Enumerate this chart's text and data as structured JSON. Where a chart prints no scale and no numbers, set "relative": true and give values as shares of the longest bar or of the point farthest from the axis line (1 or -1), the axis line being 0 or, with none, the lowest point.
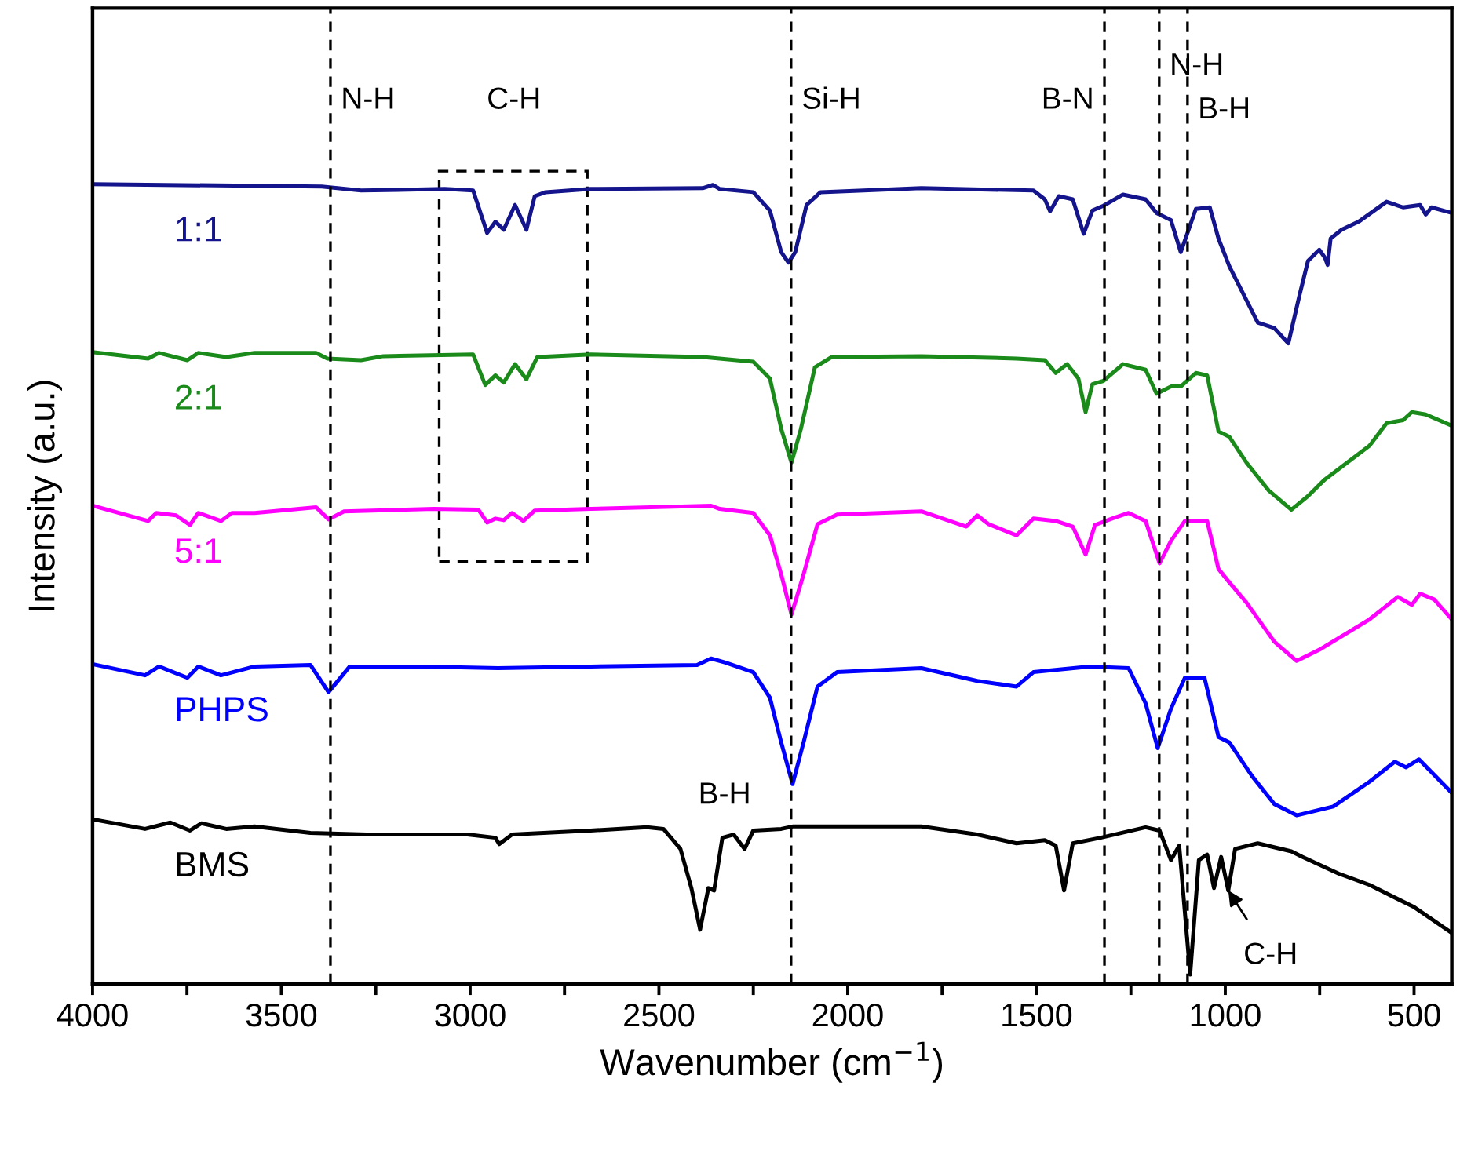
{
  "chart_data": {
    "type": "line",
    "relative": true,
    "xlabel": "Wavenumber (cm$^{−1}$)",
    "ylabel": "Intensity (a.u.)",
    "xlim": [
      4000,
      400
    ],
    "xticks": [
      4000,
      {
        "value": 3750,
        "label": null
      },
      3500,
      {
        "value": 3250,
        "label": null
      },
      3000,
      {
        "value": 2750,
        "label": null
      },
      2500,
      {
        "value": 2250,
        "label": null
      },
      2000,
      {
        "value": 1750,
        "label": null
      },
      1500,
      {
        "value": 1250,
        "label": null
      },
      1000,
      {
        "value": 750,
        "label": null
      },
      500
    ],
    "grid": false,
    "line_style": "solid",
    "marker": "none",
    "series": [
      {
        "name": "1:1",
        "color": "#14148c",
        "x": [
          4000,
          3393,
          3289,
          3067,
          2992,
          2955,
          2933,
          2911,
          2881,
          2851,
          2829,
          2800,
          2681,
          2384,
          2357,
          2339,
          2250,
          2206,
          2176,
          2157,
          2139,
          2109,
          2072,
          1805,
          1508,
          1478,
          1464,
          1441,
          1404,
          1375,
          1352,
          1323,
          1271,
          1211,
          1182,
          1144,
          1118,
          1100,
          1078,
          1041,
          1018,
          989,
          959,
          914,
          870,
          833,
          803,
          781,
          751,
          736,
          729,
          721,
          692,
          647,
          573,
          529,
          484,
          469,
          454,
          400
        ],
        "values": [
          1.0,
          0.997,
          0.992,
          0.994,
          0.992,
          0.939,
          0.953,
          0.943,
          0.974,
          0.943,
          0.985,
          0.99,
          0.994,
          0.995,
          0.999,
          0.994,
          0.99,
          0.967,
          0.915,
          0.902,
          0.915,
          0.974,
          0.99,
          0.995,
          0.992,
          0.981,
          0.966,
          0.985,
          0.981,
          0.938,
          0.967,
          0.973,
          0.987,
          0.981,
          0.964,
          0.955,
          0.915,
          0.939,
          0.969,
          0.971,
          0.932,
          0.897,
          0.869,
          0.827,
          0.82,
          0.801,
          0.862,
          0.904,
          0.918,
          0.908,
          0.899,
          0.932,
          0.943,
          0.953,
          0.978,
          0.971,
          0.974,
          0.962,
          0.971,
          0.964
        ]
      },
      {
        "name": "2:1",
        "color": "#1a8a1a",
        "x": [
          4000,
          3853,
          3824,
          3749,
          3720,
          3646,
          3571,
          3408,
          3378,
          3289,
          3230,
          2992,
          2960,
          2933,
          2911,
          2881,
          2851,
          2822,
          2681,
          2384,
          2250,
          2206,
          2176,
          2149,
          2124,
          2087,
          2042,
          1805,
          1553,
          1478,
          1449,
          1419,
          1389,
          1370,
          1352,
          1323,
          1271,
          1211,
          1182,
          1144,
          1118,
          1078,
          1048,
          1018,
          989,
          944,
          885,
          825,
          781,
          736,
          677,
          618,
          573,
          529,
          506,
          469,
          400
        ],
        "values": [
          0.79,
          0.782,
          0.789,
          0.78,
          0.789,
          0.784,
          0.789,
          0.789,
          0.782,
          0.78,
          0.785,
          0.787,
          0.749,
          0.761,
          0.752,
          0.775,
          0.756,
          0.784,
          0.787,
          0.784,
          0.778,
          0.757,
          0.694,
          0.652,
          0.694,
          0.771,
          0.784,
          0.785,
          0.782,
          0.78,
          0.764,
          0.775,
          0.757,
          0.715,
          0.75,
          0.754,
          0.775,
          0.768,
          0.738,
          0.747,
          0.747,
          0.764,
          0.761,
          0.691,
          0.684,
          0.652,
          0.617,
          0.593,
          0.61,
          0.631,
          0.652,
          0.673,
          0.701,
          0.705,
          0.715,
          0.712,
          0.698
        ]
      },
      {
        "name": "5:1",
        "color": "#ff00ff",
        "x": [
          4000,
          3853,
          3831,
          3779,
          3742,
          3720,
          3660,
          3631,
          3571,
          3408,
          3375,
          3334,
          3096,
          2978,
          2955,
          2933,
          2911,
          2889,
          2859,
          2829,
          2681,
          2362,
          2339,
          2250,
          2206,
          2176,
          2149,
          2117,
          2080,
          2028,
          1805,
          1686,
          1657,
          1627,
          1553,
          1508,
          1449,
          1404,
          1370,
          1345,
          1300,
          1256,
          1211,
          1174,
          1144,
          1107,
          1048,
          1018,
          989,
          944,
          870,
          811,
          751,
          677,
          618,
          543,
          506,
          484,
          447,
          400
        ],
        "values": [
          0.598,
          0.579,
          0.589,
          0.586,
          0.574,
          0.589,
          0.579,
          0.589,
          0.589,
          0.596,
          0.581,
          0.591,
          0.594,
          0.593,
          0.577,
          0.582,
          0.58,
          0.589,
          0.579,
          0.592,
          0.594,
          0.598,
          0.594,
          0.589,
          0.561,
          0.512,
          0.462,
          0.512,
          0.575,
          0.587,
          0.591,
          0.572,
          0.586,
          0.575,
          0.561,
          0.582,
          0.579,
          0.572,
          0.537,
          0.574,
          0.582,
          0.589,
          0.579,
          0.526,
          0.554,
          0.579,
          0.579,
          0.519,
          0.502,
          0.477,
          0.428,
          0.404,
          0.418,
          0.439,
          0.456,
          0.484,
          0.474,
          0.488,
          0.481,
          0.456
        ]
      },
      {
        "name": "PHPS",
        "color": "#0000ff",
        "x": [
          4000,
          3861,
          3824,
          3749,
          3720,
          3660,
          3571,
          3423,
          3375,
          3319,
          3126,
          2926,
          2681,
          2399,
          2362,
          2324,
          2250,
          2206,
          2176,
          2146,
          2117,
          2080,
          2028,
          1805,
          1657,
          1553,
          1508,
          1360,
          1256,
          1211,
          1179,
          1144,
          1107,
          1055,
          1018,
          989,
          929,
          870,
          811,
          714,
          618,
          551,
          521,
          487,
          400
        ],
        "values": [
          0.4,
          0.386,
          0.397,
          0.383,
          0.397,
          0.386,
          0.397,
          0.399,
          0.365,
          0.397,
          0.397,
          0.395,
          0.397,
          0.399,
          0.407,
          0.402,
          0.39,
          0.358,
          0.302,
          0.25,
          0.302,
          0.372,
          0.39,
          0.395,
          0.379,
          0.372,
          0.39,
          0.397,
          0.395,
          0.351,
          0.295,
          0.344,
          0.383,
          0.383,
          0.309,
          0.302,
          0.26,
          0.225,
          0.211,
          0.222,
          0.253,
          0.278,
          0.271,
          0.281,
          0.239
        ]
      },
      {
        "name": "BMS",
        "color": "#000000",
        "x": [
          4000,
          3861,
          3794,
          3742,
          3712,
          3646,
          3571,
          3423,
          3274,
          3007,
          2933,
          2923,
          2889,
          2681,
          2532,
          2488,
          2443,
          2414,
          2391,
          2369,
          2354,
          2332,
          2302,
          2273,
          2250,
          2176,
          2146,
          1805,
          1657,
          1553,
          1478,
          1449,
          1427,
          1404,
          1330,
          1211,
          1174,
          1144,
          1122,
          1093,
          1070,
          1048,
          1030,
          1011,
          992,
          974,
          914,
          825,
          796,
          699,
          618,
          499,
          400
        ],
        "values": [
          0.206,
          0.194,
          0.202,
          0.192,
          0.201,
          0.194,
          0.197,
          0.189,
          0.187,
          0.187,
          0.183,
          0.175,
          0.187,
          0.192,
          0.196,
          0.194,
          0.169,
          0.12,
          0.068,
          0.12,
          0.117,
          0.183,
          0.187,
          0.169,
          0.192,
          0.194,
          0.197,
          0.197,
          0.187,
          0.176,
          0.18,
          0.173,
          0.117,
          0.176,
          0.183,
          0.196,
          0.192,
          0.155,
          0.173,
          0.012,
          0.155,
          0.162,
          0.12,
          0.159,
          0.117,
          0.169,
          0.176,
          0.166,
          0.159,
          0.138,
          0.124,
          0.096,
          0.064
        ]
      }
    ],
    "ref_lines": [
      {
        "axis": "x",
        "value": 3370,
        "label": "N-H",
        "color": "#000000",
        "line_style": "dashed"
      },
      {
        "axis": "x",
        "value": 2150,
        "label": "Si-H",
        "color": "#000000",
        "line_style": "dashed"
      },
      {
        "axis": "x",
        "value": 1320,
        "label": "B-N",
        "color": "#000000",
        "line_style": "dashed"
      },
      {
        "axis": "x",
        "value": 1175,
        "label": "N-H",
        "color": "#000000",
        "line_style": "dashed"
      },
      {
        "axis": "x",
        "value": 1100,
        "label": "B-H",
        "color": "#000000",
        "line_style": "dashed"
      }
    ],
    "annotations": [
      "C-H",
      "B-H",
      {
        "text": "C-H",
        "x": 992,
        "y": 0.117
      }
    ]
  }
}
